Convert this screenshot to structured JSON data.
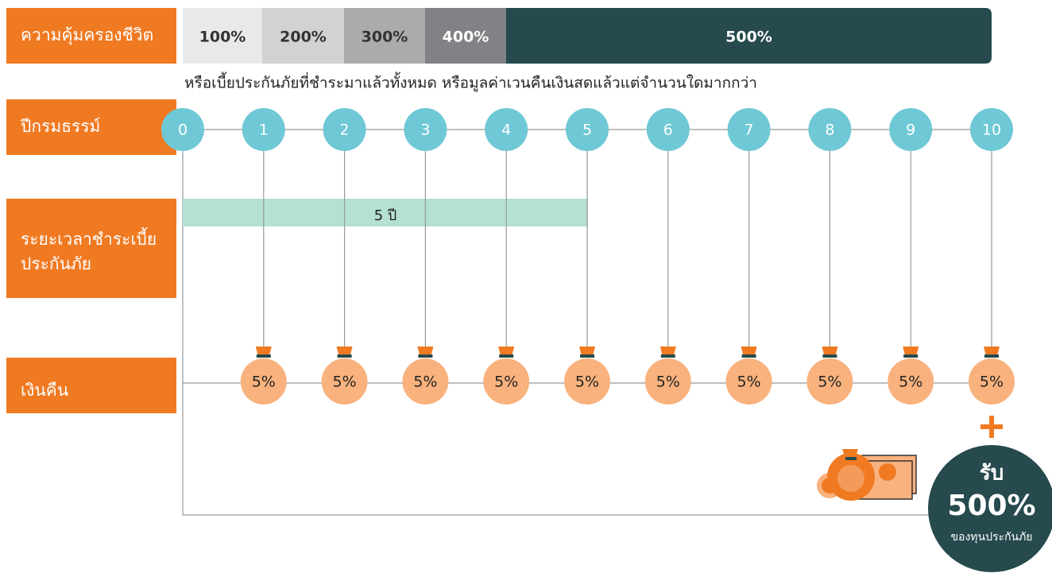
{
  "labels": {
    "coverage": "ความคุ้มครองชีวิต",
    "policy_year": "ปีกรมธรรม์",
    "payment_period": [
      "ระยะเวลาชำระเบี้ย",
      "ประกันภัย"
    ],
    "refund": "เงินคืน"
  },
  "coverage_levels": [
    "100%",
    "200%",
    "300%",
    "400%",
    "500%"
  ],
  "coverage_note": "หรือเบี้ยประกันภัยที่ชำระมาแล้วทั้งหมด หรือมูลค่าเวนคืนเงินสดแล้วแต่จำนวนใดมากกว่า",
  "years": [
    0,
    1,
    2,
    3,
    4,
    5,
    6,
    7,
    8,
    9,
    10
  ],
  "payment_period_bar": "5 ปี",
  "refunds": [
    "5%",
    "5%",
    "5%",
    "5%",
    "5%",
    "5%",
    "5%",
    "5%",
    "5%",
    "5%"
  ],
  "bonus": {
    "title": "รับ",
    "amount": "500%",
    "caption": "ของทุนประกันภัย"
  }
}
